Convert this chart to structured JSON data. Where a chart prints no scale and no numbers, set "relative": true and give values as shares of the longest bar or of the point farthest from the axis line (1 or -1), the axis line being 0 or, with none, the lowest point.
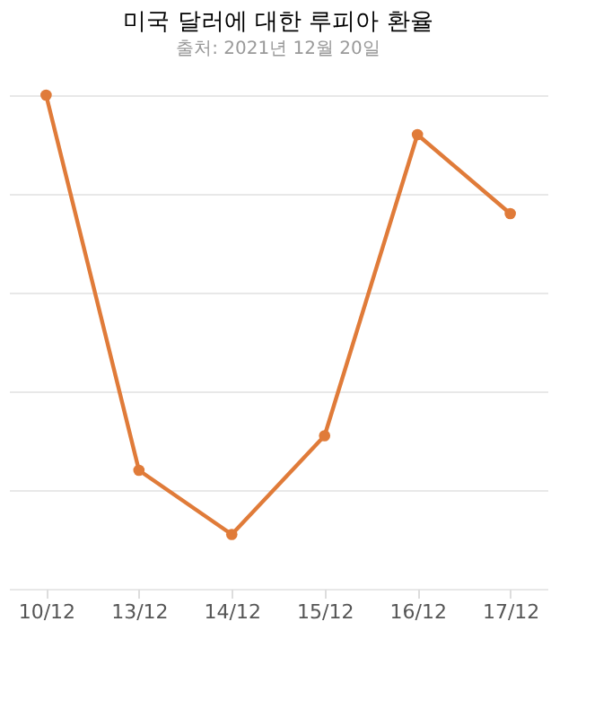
{
  "chart_data": {
    "type": "line",
    "title": "미국 달러에 대한 루피아 환율",
    "subtitle": "출처: 2021년 12월 20일",
    "categories": [
      "10/12",
      "13/12",
      "14/12",
      "15/12",
      "16/12",
      "17/12"
    ],
    "relative": true,
    "series": [
      {
        "color": "#e07b39",
        "values": [
          1,
          0.24,
          0.11,
          0.31,
          0.92,
          0.76
        ]
      }
    ],
    "grid": "y",
    "marker": "circle",
    "line_style": "solid",
    "legend": false
  }
}
